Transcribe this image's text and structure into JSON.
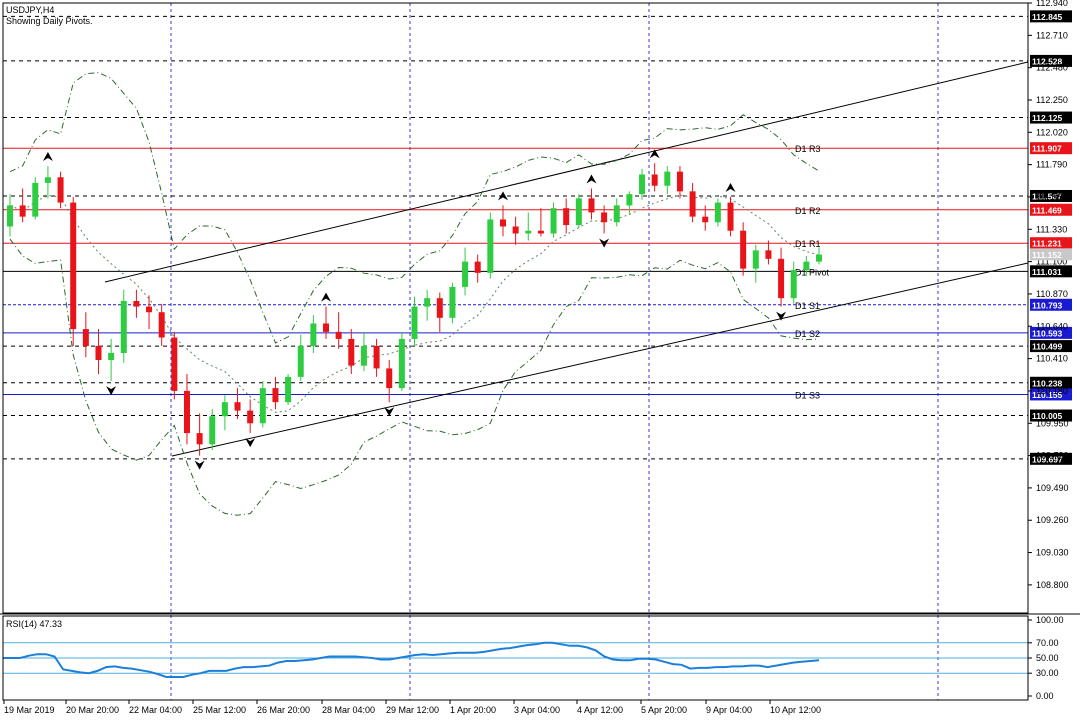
{
  "chart_data": [
    {
      "type": "candlestick",
      "title": "USDJPY,H4",
      "subtitle": "Showing Daily Pivots.",
      "ylim": [
        108.6,
        112.94
      ],
      "y_ticks": [
        "112.940",
        "112.710",
        "112.480",
        "112.250",
        "112.020",
        "111.790",
        "111.560",
        "111.330",
        "111.100",
        "110.870",
        "110.640",
        "110.410",
        "110.180",
        "109.950",
        "109.720",
        "109.490",
        "109.260",
        "109.030",
        "108.800"
      ],
      "x_labels": [
        "19 Mar 2019",
        "20 Mar 20:00",
        "22 Mar 04:00",
        "25 Mar 12:00",
        "26 Mar 20:00",
        "28 Mar 04:00",
        "29 Mar 12:00",
        "1 Apr 20:00",
        "3 Apr 04:00",
        "4 Apr 12:00",
        "5 Apr 20:00",
        "9 Apr 04:00",
        "10 Apr 12:00"
      ],
      "pivot_levels": [
        {
          "name": "D1 R3",
          "value": 111.907,
          "color": "#e8141a"
        },
        {
          "name": "D1 R2",
          "value": 111.469,
          "color": "#e8141a"
        },
        {
          "name": "D1 R1",
          "value": 111.231,
          "color": "#e8141a"
        },
        {
          "name": "D1 Pivot",
          "value": 111.031,
          "color": "#000000"
        },
        {
          "name": "D1 S1",
          "value": 110.793,
          "color": "#1a1ad0"
        },
        {
          "name": "D1 S2",
          "value": 110.593,
          "color": "#1a1ad0"
        },
        {
          "name": "D1 S3",
          "value": 110.155,
          "color": "#1a1ad0"
        }
      ],
      "dashed_levels": [
        112.845,
        112.528,
        112.125,
        111.567,
        110.499,
        110.238,
        110.005,
        109.697
      ],
      "current_price": "111.152",
      "candles_ohlc": [
        [
          111.35,
          111.58,
          111.28,
          111.5
        ],
        [
          111.5,
          111.62,
          111.38,
          111.42
        ],
        [
          111.42,
          111.7,
          111.4,
          111.66
        ],
        [
          111.66,
          111.78,
          111.55,
          111.7
        ],
        [
          111.7,
          111.74,
          111.48,
          111.52
        ],
        [
          111.52,
          111.56,
          110.5,
          110.62
        ],
        [
          110.62,
          110.74,
          110.42,
          110.5
        ],
        [
          110.5,
          110.62,
          110.3,
          110.4
        ],
        [
          110.4,
          110.55,
          110.25,
          110.45
        ],
        [
          110.45,
          110.9,
          110.38,
          110.82
        ],
        [
          110.82,
          110.9,
          110.7,
          110.78
        ],
        [
          110.78,
          110.86,
          110.62,
          110.74
        ],
        [
          110.74,
          110.8,
          110.5,
          110.56
        ],
        [
          110.56,
          110.6,
          110.12,
          110.18
        ],
        [
          110.18,
          110.3,
          109.8,
          109.88
        ],
        [
          109.88,
          110.02,
          109.72,
          109.8
        ],
        [
          109.8,
          110.05,
          109.76,
          110.0
        ],
        [
          110.0,
          110.15,
          109.9,
          110.1
        ],
        [
          110.1,
          110.2,
          109.98,
          110.04
        ],
        [
          110.04,
          110.12,
          109.88,
          109.95
        ],
        [
          109.95,
          110.25,
          109.92,
          110.2
        ],
        [
          110.2,
          110.28,
          110.05,
          110.1
        ],
        [
          110.1,
          110.3,
          110.08,
          110.28
        ],
        [
          110.28,
          110.58,
          110.25,
          110.5
        ],
        [
          110.5,
          110.72,
          110.45,
          110.66
        ],
        [
          110.66,
          110.78,
          110.55,
          110.6
        ],
        [
          110.6,
          110.74,
          110.48,
          110.55
        ],
        [
          110.55,
          110.62,
          110.3,
          110.36
        ],
        [
          110.36,
          110.6,
          110.32,
          110.5
        ],
        [
          110.5,
          110.55,
          110.28,
          110.34
        ],
        [
          110.34,
          110.4,
          110.1,
          110.2
        ],
        [
          110.2,
          110.6,
          110.18,
          110.55
        ],
        [
          110.55,
          110.85,
          110.5,
          110.78
        ],
        [
          110.78,
          110.9,
          110.68,
          110.84
        ],
        [
          110.84,
          110.88,
          110.6,
          110.7
        ],
        [
          110.7,
          110.95,
          110.66,
          110.92
        ],
        [
          110.92,
          111.2,
          110.86,
          111.1
        ],
        [
          111.1,
          111.15,
          110.95,
          111.02
        ],
        [
          111.02,
          111.45,
          110.98,
          111.4
        ],
        [
          111.4,
          111.5,
          111.28,
          111.35
        ],
        [
          111.35,
          111.42,
          111.22,
          111.3
        ],
        [
          111.3,
          111.45,
          111.25,
          111.32
        ],
        [
          111.32,
          111.48,
          111.28,
          111.3
        ],
        [
          111.3,
          111.52,
          111.27,
          111.48
        ],
        [
          111.48,
          111.55,
          111.3,
          111.36
        ],
        [
          111.36,
          111.58,
          111.34,
          111.55
        ],
        [
          111.55,
          111.62,
          111.4,
          111.45
        ],
        [
          111.45,
          111.5,
          111.3,
          111.38
        ],
        [
          111.38,
          111.55,
          111.35,
          111.5
        ],
        [
          111.5,
          111.6,
          111.44,
          111.58
        ],
        [
          111.58,
          111.76,
          111.54,
          111.72
        ],
        [
          111.72,
          111.8,
          111.6,
          111.64
        ],
        [
          111.64,
          111.78,
          111.58,
          111.74
        ],
        [
          111.74,
          111.78,
          111.55,
          111.6
        ],
        [
          111.6,
          111.66,
          111.38,
          111.42
        ],
        [
          111.42,
          111.5,
          111.32,
          111.38
        ],
        [
          111.38,
          111.55,
          111.35,
          111.52
        ],
        [
          111.52,
          111.56,
          111.28,
          111.32
        ],
        [
          111.32,
          111.38,
          111.0,
          111.05
        ],
        [
          111.05,
          111.22,
          110.95,
          111.18
        ],
        [
          111.18,
          111.25,
          111.08,
          111.12
        ],
        [
          111.12,
          111.2,
          110.78,
          110.84
        ],
        [
          110.84,
          111.1,
          110.8,
          111.04
        ],
        [
          111.04,
          111.14,
          111.0,
          111.1
        ],
        [
          111.1,
          111.2,
          111.08,
          111.15
        ]
      ]
    },
    {
      "type": "line",
      "title": "RSI(14) 47.33",
      "ylim": [
        0,
        100
      ],
      "y_ticks": [
        "100.00",
        "70.00",
        "50.00",
        "30.00",
        "0.00"
      ],
      "levels": [
        70,
        50,
        30
      ],
      "values": [
        50,
        50,
        50,
        53,
        55,
        55,
        52,
        35,
        33,
        31,
        30,
        33,
        38,
        39,
        37,
        36,
        34,
        32,
        29,
        25,
        25,
        25,
        28,
        30,
        33,
        33,
        33,
        36,
        38,
        38,
        39,
        40,
        44,
        46,
        46,
        47,
        48,
        50,
        52,
        52,
        52,
        52,
        51,
        50,
        48,
        48,
        50,
        52,
        54,
        55,
        54,
        55,
        56,
        57,
        57,
        57,
        58,
        60,
        62,
        63,
        65,
        67,
        68,
        70,
        70,
        68,
        66,
        66,
        64,
        60,
        52,
        48,
        47,
        47,
        49,
        49,
        48,
        45,
        42,
        41,
        36,
        37,
        37,
        38,
        38,
        39,
        39,
        40,
        40,
        38,
        40,
        42,
        44,
        45,
        46,
        47
      ]
    }
  ]
}
